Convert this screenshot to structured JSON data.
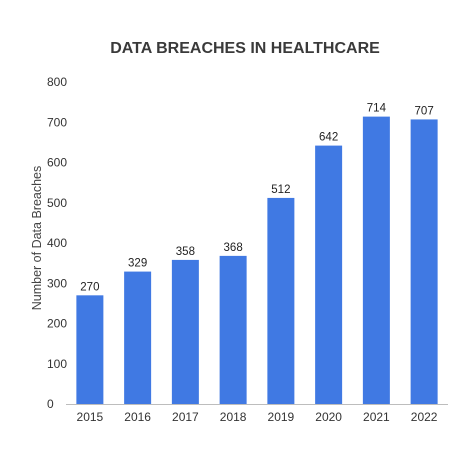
{
  "chart_data": {
    "type": "bar",
    "title": "DATA BREACHES IN HEALTHCARE",
    "xlabel": "",
    "ylabel": "Number of Data Breaches",
    "categories": [
      "2015",
      "2016",
      "2017",
      "2018",
      "2019",
      "2020",
      "2021",
      "2022"
    ],
    "values": [
      270,
      329,
      358,
      368,
      512,
      642,
      714,
      707
    ],
    "data_labels": [
      "270",
      "329",
      "358",
      "368",
      "512",
      "642",
      "714",
      "707"
    ],
    "ylim": [
      0,
      800
    ],
    "yticks": [
      "0",
      "100",
      "200",
      "300",
      "400",
      "500",
      "600",
      "700",
      "800"
    ],
    "grid": false,
    "legend": "none",
    "bar_color": "#4079e3"
  }
}
